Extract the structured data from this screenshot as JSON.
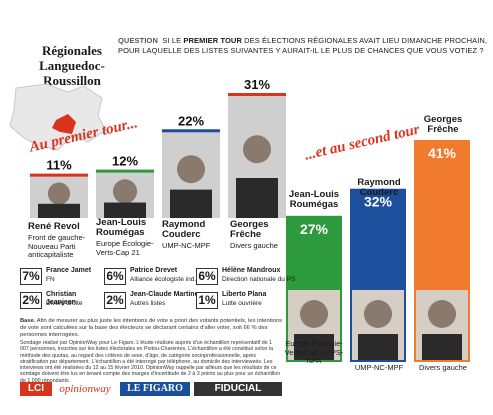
{
  "region_title": "Régionales Languedoc-Roussillon",
  "question": {
    "label": "QUESTION",
    "text_before": "SI LE ",
    "text_bold": "PREMIER TOUR",
    "text_after": " DES ÉLECTIONS RÉGIONALES AVAIT LIEU DIMANCHE PROCHAIN, POUR LAQUELLE DES LISTES SUIVANTES Y AURAIT-IL LE PLUS DE CHANCES QUE VOUS VOTIEZ ?"
  },
  "labels": {
    "first_round": "Au premier tour...",
    "second_round": "...et au second tour"
  },
  "chart_data": [
    {
      "type": "bar",
      "title": "Au premier tour...",
      "categories": [
        "René Revol",
        "Jean-Louis Roumégas",
        "Raymond Couderc",
        "Georges Frêche",
        "France Jamet",
        "Patrice Drevet",
        "Hélène Mandroux",
        "Christian Jeanjean",
        "Jean-Claude Martinez",
        "Liberto Plana"
      ],
      "parties": [
        "Front de gauche-Nouveau Parti anticapitaliste",
        "Europe Écologie-Verts-Cap 21",
        "UMP-NC-MPF",
        "Divers gauche",
        "FN",
        "Alliance écologiste ind.",
        "Direction nationale du PS",
        "Divers droite",
        "Autres listes",
        "Lutte ouvrière"
      ],
      "values": [
        11,
        12,
        22,
        31,
        7,
        6,
        6,
        2,
        2,
        1
      ],
      "value_labels": [
        "11%",
        "12%",
        "22%",
        "31%",
        "7%",
        "6%",
        "6%",
        "2%",
        "2%",
        "1%"
      ],
      "colors": [
        "#d8331d",
        "#2d9a3e",
        "#1c4f9c",
        "#d8331d",
        "#555555",
        "#555555",
        "#555555",
        "#555555",
        "#555555",
        "#555555"
      ],
      "ylim": [
        0,
        31
      ]
    },
    {
      "type": "bar",
      "title": "...et au second tour",
      "categories": [
        "Jean-Louis Roumégas",
        "Raymond Couderc",
        "Georges Frêche"
      ],
      "parties": [
        "Europe Écologie-Verts-Cap 21-PS-NPA",
        "UMP-NC-MPF",
        "Divers gauche"
      ],
      "values": [
        27,
        32,
        41
      ],
      "value_labels": [
        "27%",
        "32%",
        "41%"
      ],
      "colors": [
        "#2d9a3e",
        "#1c4f9c",
        "#f07a2e"
      ],
      "ylim": [
        0,
        41
      ]
    }
  ],
  "first_round_names": [
    {
      "name": "René Revol",
      "party": "Front de gauche-Nouveau Parti anticapitaliste"
    },
    {
      "name": "Jean-Louis Roumégas",
      "party": "Europe Écologie-Verts-Cap 21"
    },
    {
      "name": "Raymond Couderc",
      "party": "UMP-NC-MPF"
    },
    {
      "name": "Georges Frêche",
      "party": "Divers gauche"
    }
  ],
  "minor": [
    {
      "pct": "7%",
      "name": "France Jamet",
      "party": "FN"
    },
    {
      "pct": "6%",
      "name": "Patrice Drevet",
      "party": "Alliance écologiste ind."
    },
    {
      "pct": "6%",
      "name": "Hélène Mandroux",
      "party": "Direction nationale du PS"
    },
    {
      "pct": "2%",
      "name": "Christian Jeanjean",
      "party": "Divers droite"
    },
    {
      "pct": "2%",
      "name": "Jean-Claude Martinez",
      "party": "Autres listes"
    },
    {
      "pct": "1%",
      "name": "Liberto Plana",
      "party": "Lutte ouvrière"
    }
  ],
  "second_round_names": [
    {
      "name": "Jean-Louis Roumégas",
      "party": "Europe Écologie-Verts-Cap 21-PS-NPA"
    },
    {
      "name": "Raymond Couderc",
      "party": "UMP-NC-MPF"
    },
    {
      "name": "Georges Frêche",
      "party": "Divers gauche"
    }
  ],
  "base_note": {
    "label": "Base.",
    "text": "Afin de mesurer au plus juste les intentions de vote a priori des votants potentiels, les intentions de vote sont calculées sur la base des électeurs se déclarant certains d'aller voter, soit 66 % des personnes interrogées."
  },
  "methodology": "Sondage réalisé par OpinionWay pour Le Figaro. L'étude réalisée auprès d'un échantillon représentatif de 1 007 personnes, inscrites sur les listes électorales en Poitou-Charentes. L'échantillon a été constitué selon la méthode des quotas, au regard des critères de sexe, d'âge, de catégorie socioprofessionnelle, après stratification par département. L'échantillon a été interrogé par téléphone, au domicile des intervieweés. Les interviews ont été réalisées du 12 au 15 février 2010. OpinionWay rappelle par ailleurs que les résultats de ce sondage doivent être lus en tenant compte des marges d'incertitude de 2 à 3 points au plus pour un échantillon de 1 000 répondants.",
  "logos": [
    "LCI",
    "opinionway",
    "LE FIGARO",
    "FIDUCIAL"
  ]
}
